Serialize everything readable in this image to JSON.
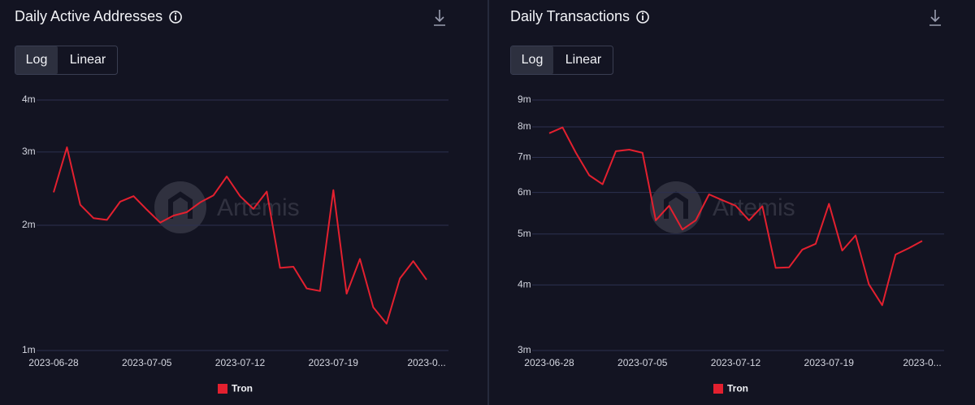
{
  "chart_data": [
    {
      "type": "line",
      "title": "Daily Active Addresses",
      "scale_options": [
        "Log",
        "Linear"
      ],
      "log_scale": true,
      "grid": true,
      "watermark": "Artemis",
      "x": [
        "2023-06-28",
        "2023-06-29",
        "2023-06-30",
        "2023-07-01",
        "2023-07-02",
        "2023-07-03",
        "2023-07-04",
        "2023-07-05",
        "2023-07-06",
        "2023-07-07",
        "2023-07-08",
        "2023-07-09",
        "2023-07-10",
        "2023-07-11",
        "2023-07-12",
        "2023-07-13",
        "2023-07-14",
        "2023-07-15",
        "2023-07-16",
        "2023-07-17",
        "2023-07-18",
        "2023-07-19",
        "2023-07-20",
        "2023-07-21",
        "2023-07-22",
        "2023-07-23",
        "2023-07-24",
        "2023-07-25",
        "2023-07-26"
      ],
      "xticks": [
        "2023-06-28",
        "2023-07-05",
        "2023-07-12",
        "2023-07-19",
        {
          "value": "2023-07-26",
          "label": "2023-0..."
        }
      ],
      "series": [
        {
          "name": "Tron",
          "color": "#e3202f",
          "values": [
            2400000,
            3080000,
            2240000,
            2080000,
            2060000,
            2280000,
            2350000,
            2180000,
            2030000,
            2110000,
            2150000,
            2270000,
            2360000,
            2620000,
            2350000,
            2190000,
            2410000,
            1580000,
            1590000,
            1410000,
            1390000,
            2430000,
            1370000,
            1660000,
            1270000,
            1160000,
            1490000,
            1640000,
            1480000
          ]
        }
      ],
      "ylim": [
        1000000,
        4000000
      ],
      "yticks": [
        {
          "value": 1000000,
          "label": "1m"
        },
        {
          "value": 2000000,
          "label": "2m"
        },
        {
          "value": 3000000,
          "label": "3m"
        },
        {
          "value": 4000000,
          "label": "4m"
        }
      ]
    },
    {
      "type": "line",
      "title": "Daily Transactions",
      "scale_options": [
        "Log",
        "Linear"
      ],
      "log_scale": true,
      "grid": true,
      "watermark": "Artemis",
      "x": [
        "2023-06-28",
        "2023-06-29",
        "2023-06-30",
        "2023-07-01",
        "2023-07-02",
        "2023-07-03",
        "2023-07-04",
        "2023-07-05",
        "2023-07-06",
        "2023-07-07",
        "2023-07-08",
        "2023-07-09",
        "2023-07-10",
        "2023-07-11",
        "2023-07-12",
        "2023-07-13",
        "2023-07-14",
        "2023-07-15",
        "2023-07-16",
        "2023-07-17",
        "2023-07-18",
        "2023-07-19",
        "2023-07-20",
        "2023-07-21",
        "2023-07-22",
        "2023-07-23",
        "2023-07-24",
        "2023-07-25",
        "2023-07-26"
      ],
      "xticks": [
        "2023-06-28",
        "2023-07-05",
        "2023-07-12",
        "2023-07-19",
        {
          "value": "2023-07-26",
          "label": "2023-0..."
        }
      ],
      "series": [
        {
          "name": "Tron",
          "color": "#e3202f",
          "values": [
            7780000,
            7980000,
            7140000,
            6470000,
            6220000,
            7190000,
            7240000,
            7140000,
            5310000,
            5660000,
            5100000,
            5310000,
            5950000,
            5800000,
            5660000,
            5310000,
            5650000,
            4310000,
            4320000,
            4670000,
            4790000,
            5710000,
            4650000,
            4970000,
            4010000,
            3660000,
            4570000,
            4700000,
            4850000
          ]
        }
      ],
      "ylim": [
        3000000,
        9000000
      ],
      "yticks": [
        {
          "value": 3000000,
          "label": "3m"
        },
        {
          "value": 4000000,
          "label": "4m"
        },
        {
          "value": 5000000,
          "label": "5m"
        },
        {
          "value": 6000000,
          "label": "6m"
        },
        {
          "value": 7000000,
          "label": "7m"
        },
        {
          "value": 8000000,
          "label": "8m"
        },
        {
          "value": 9000000,
          "label": "9m"
        }
      ]
    }
  ]
}
